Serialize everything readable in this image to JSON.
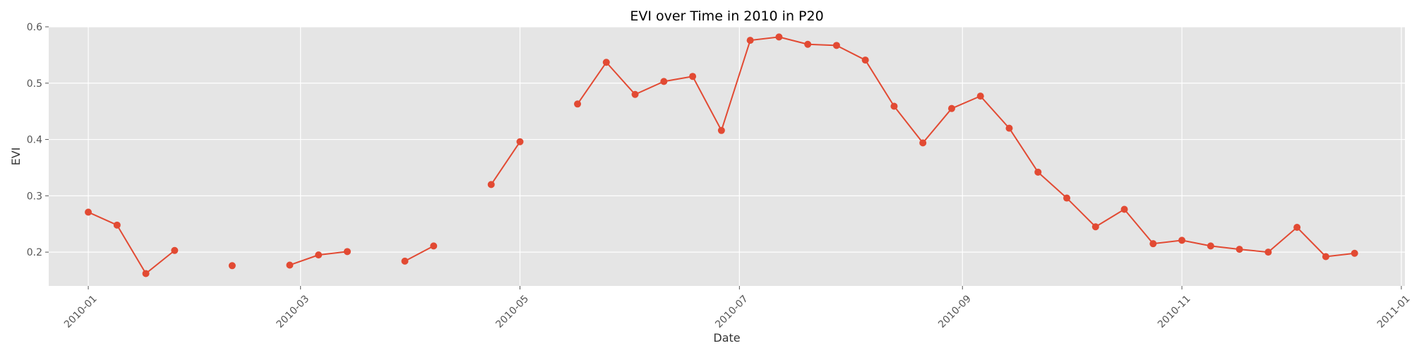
{
  "chart_data": {
    "type": "line",
    "title": "EVI over Time in 2010 in P20",
    "xlabel": "Date",
    "ylabel": "EVI",
    "xlim": [
      "2009-12-21",
      "2011-01-02"
    ],
    "ylim": [
      0.14,
      0.6
    ],
    "grid": true,
    "y_ticks": [
      "0.2",
      "0.3",
      "0.4",
      "0.5",
      "0.6"
    ],
    "x_ticks": [
      {
        "date": "2010-01-01",
        "label": "2010-01"
      },
      {
        "date": "2010-03-01",
        "label": "2010-03"
      },
      {
        "date": "2010-05-01",
        "label": "2010-05"
      },
      {
        "date": "2010-07-01",
        "label": "2010-07"
      },
      {
        "date": "2010-09-01",
        "label": "2010-09"
      },
      {
        "date": "2010-11-01",
        "label": "2010-11"
      },
      {
        "date": "2011-01-01",
        "label": "2011-01"
      }
    ],
    "color": "#E24A33",
    "series": [
      {
        "points": [
          {
            "x": "2010-01-01",
            "y": 0.271
          },
          {
            "x": "2010-01-09",
            "y": 0.248
          },
          {
            "x": "2010-01-17",
            "y": 0.162
          },
          {
            "x": "2010-01-25",
            "y": 0.203
          },
          {
            "x": "2010-02-10",
            "y": 0.176
          },
          {
            "x": "2010-02-26",
            "y": 0.177
          },
          {
            "x": "2010-03-06",
            "y": 0.195
          },
          {
            "x": "2010-03-14",
            "y": 0.201
          },
          {
            "x": "2010-03-30",
            "y": 0.184
          },
          {
            "x": "2010-04-07",
            "y": 0.211
          },
          {
            "x": "2010-04-23",
            "y": 0.32
          },
          {
            "x": "2010-05-01",
            "y": 0.396
          },
          {
            "x": "2010-05-17",
            "y": 0.463
          },
          {
            "x": "2010-05-25",
            "y": 0.537
          },
          {
            "x": "2010-06-02",
            "y": 0.48
          },
          {
            "x": "2010-06-10",
            "y": 0.503
          },
          {
            "x": "2010-06-18",
            "y": 0.512
          },
          {
            "x": "2010-06-26",
            "y": 0.416
          },
          {
            "x": "2010-07-04",
            "y": 0.576
          },
          {
            "x": "2010-07-12",
            "y": 0.582
          },
          {
            "x": "2010-07-20",
            "y": 0.569
          },
          {
            "x": "2010-07-28",
            "y": 0.567
          },
          {
            "x": "2010-08-05",
            "y": 0.541
          },
          {
            "x": "2010-08-13",
            "y": 0.459
          },
          {
            "x": "2010-08-21",
            "y": 0.394
          },
          {
            "x": "2010-08-29",
            "y": 0.455
          },
          {
            "x": "2010-09-06",
            "y": 0.477
          },
          {
            "x": "2010-09-14",
            "y": 0.42
          },
          {
            "x": "2010-09-22",
            "y": 0.342
          },
          {
            "x": "2010-09-30",
            "y": 0.296
          },
          {
            "x": "2010-10-08",
            "y": 0.245
          },
          {
            "x": "2010-10-16",
            "y": 0.276
          },
          {
            "x": "2010-10-24",
            "y": 0.215
          },
          {
            "x": "2010-11-01",
            "y": 0.221
          },
          {
            "x": "2010-11-09",
            "y": 0.211
          },
          {
            "x": "2010-11-17",
            "y": 0.205
          },
          {
            "x": "2010-11-25",
            "y": 0.2
          },
          {
            "x": "2010-12-03",
            "y": 0.244
          },
          {
            "x": "2010-12-11",
            "y": 0.192
          },
          {
            "x": "2010-12-19",
            "y": 0.198
          }
        ],
        "segments": [
          {
            "from": "2010-01-01",
            "to": "2010-01-25"
          },
          {
            "from": "2010-02-26",
            "to": "2010-03-14"
          },
          {
            "from": "2010-03-30",
            "to": "2010-04-07"
          },
          {
            "from": "2010-04-23",
            "to": "2010-05-01"
          },
          {
            "from": "2010-05-17",
            "to": "2010-12-19"
          }
        ]
      }
    ]
  }
}
